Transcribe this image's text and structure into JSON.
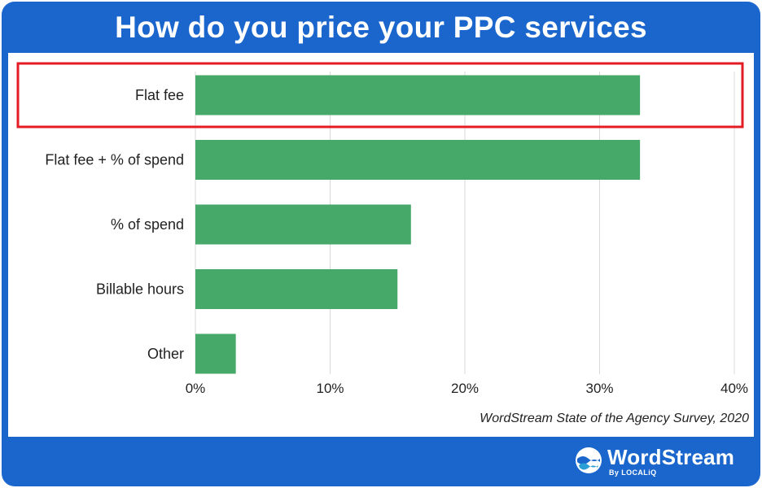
{
  "title": "How do you price your PPC services",
  "source": "WordStream State of the Agency Survey, 2020",
  "brand": {
    "name": "WordStream",
    "sub": "By LOCALiQ",
    "icon": "wordstream-wave-logo"
  },
  "colors": {
    "frame": "#1a66cc",
    "bar": "#46a869",
    "highlight": "#e31b23",
    "grid": "#d9d9d9"
  },
  "highlight": {
    "category": "Flat fee"
  },
  "chart_data": {
    "type": "bar",
    "orientation": "horizontal",
    "categories": [
      "Flat fee",
      "Flat fee + % of spend",
      "% of spend",
      "Billable hours",
      "Other"
    ],
    "values": [
      33,
      33,
      16,
      15,
      3
    ],
    "unit": "%",
    "xlim": [
      0,
      40
    ],
    "xticks": [
      "0%",
      "10%",
      "20%",
      "30%",
      "40%"
    ],
    "xtick_values": [
      0,
      10,
      20,
      30,
      40
    ],
    "grid": "vertical"
  }
}
